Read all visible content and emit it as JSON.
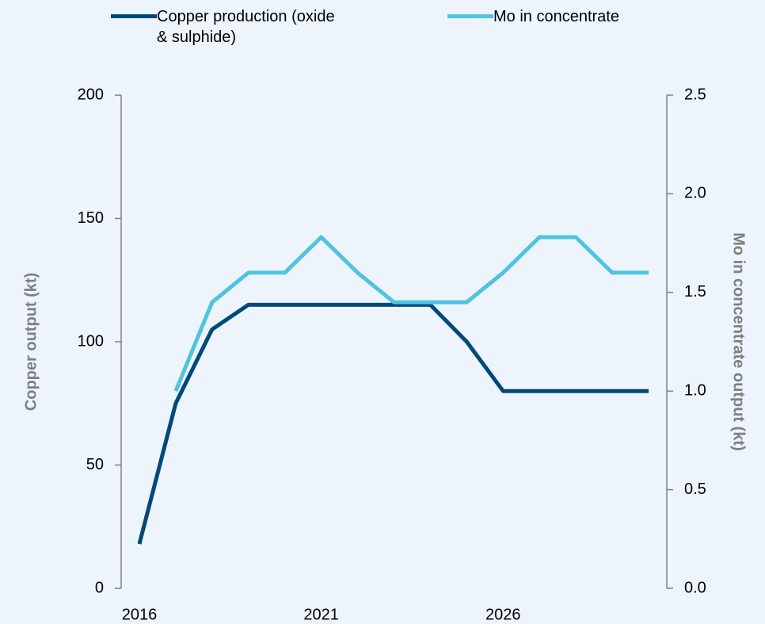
{
  "chart_data": {
    "type": "line",
    "ylabel": "Copper output (kt)",
    "y2label": "Mo in concentrate output (kt)",
    "x": [
      2016,
      2017,
      2018,
      2019,
      2020,
      2021,
      2022,
      2023,
      2024,
      2025,
      2026,
      2027,
      2028,
      2029,
      2030
    ],
    "xlim": [
      2015.5,
      2030.5
    ],
    "xticks": [
      2016,
      2021,
      2026
    ],
    "ylim": [
      0,
      200
    ],
    "yticks": [
      0,
      50,
      100,
      150,
      200
    ],
    "y2lim": [
      0,
      2.5
    ],
    "y2ticks": [
      {
        "value": 0,
        "label": "0.0"
      },
      {
        "value": 0.5,
        "label": "0.5"
      },
      {
        "value": 1,
        "label": "1.0"
      },
      {
        "value": 1.5,
        "label": "1.5"
      },
      {
        "value": 2,
        "label": "2.0"
      },
      {
        "value": 2.5,
        "label": "2.5"
      }
    ],
    "series": [
      {
        "name": "Copper production (oxide & sulphide)",
        "color": "#004a78",
        "values": [
          18,
          75,
          105,
          115,
          115,
          115,
          115,
          115,
          115,
          100,
          80,
          80,
          80,
          80,
          80
        ]
      },
      {
        "name": "Mo in concentrate",
        "color": "#4fc3e0",
        "axis": "y2",
        "values": [
          null,
          1.0,
          1.45,
          1.6,
          1.6,
          1.78,
          1.6,
          1.45,
          1.45,
          1.45,
          1.6,
          1.78,
          1.78,
          1.6,
          1.6
        ]
      }
    ]
  }
}
